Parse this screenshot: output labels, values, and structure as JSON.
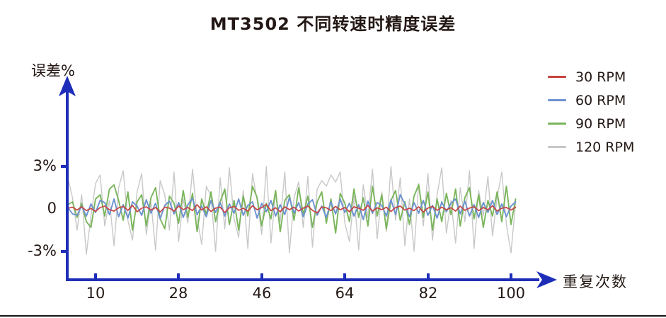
{
  "page": {
    "title": "MT3502 不同转速时精度误差"
  },
  "chart_data": {
    "type": "line",
    "title": "MT3502 不同转速时精度误差",
    "xlabel": "重复次数",
    "ylabel": "误差%",
    "x_ticks": [
      "10",
      "28",
      "46",
      "64",
      "82",
      "100"
    ],
    "x_tick_values": [
      10,
      28,
      46,
      64,
      82,
      100
    ],
    "y_ticks": [
      "3%",
      "0",
      "-3%"
    ],
    "y_tick_values": [
      3,
      0,
      -3
    ],
    "ylim": [
      -3.5,
      3.5
    ],
    "x_start": 4,
    "x_step": 1,
    "grid": false,
    "legend_position": "top-right",
    "axis_color": "#1e2eb8",
    "text_color": "#231815",
    "series": [
      {
        "name": "30 RPM",
        "color": "#c74440",
        "values": [
          0.05,
          0.12,
          -0.08,
          0.15,
          -0.12,
          0.04,
          -0.18,
          0.1,
          0.2,
          -0.06,
          -0.15,
          0.08,
          0.18,
          -0.1,
          0.25,
          -0.2,
          0.05,
          0.15,
          -0.08,
          0.1,
          -0.22,
          0.12,
          0.06,
          -0.15,
          0.2,
          -0.05,
          0.1,
          -0.12,
          0.3,
          -0.08,
          0.15,
          -0.18,
          0.06,
          0.12,
          -0.25,
          0.08,
          0.18,
          -0.1,
          0.05,
          -0.15,
          0.22,
          -0.06,
          0.1,
          0.32,
          -0.12,
          0.08,
          -0.2,
          0.15,
          -0.05,
          0.12,
          -0.15,
          0.06,
          0.2,
          -0.1,
          -0.28,
          0.14,
          0.08,
          -0.12,
          0.18,
          -0.06,
          0.1,
          -0.2,
          0.15,
          0.05,
          -0.1,
          0.25,
          -0.15,
          0.08,
          -0.05,
          0.12,
          -0.18,
          0.1,
          0.2,
          -0.08,
          0.05,
          -0.12,
          0.15,
          -0.22,
          0.06,
          0.18,
          -0.1,
          0.12,
          -0.05,
          0.08,
          -0.15,
          0.2,
          -0.1,
          0.06,
          0.15,
          -0.12,
          0.1,
          -0.06,
          0.22,
          -0.15,
          0.05,
          0.1,
          -0.08,
          0.12
        ]
      },
      {
        "name": "60 RPM",
        "color": "#6d92d0",
        "values": [
          0.1,
          -0.35,
          -0.45,
          0.2,
          -0.5,
          0.35,
          -0.25,
          0.6,
          0.45,
          -0.4,
          0.7,
          -0.55,
          0.3,
          -0.65,
          0.5,
          0.2,
          -0.45,
          0.65,
          -0.3,
          0.4,
          -0.7,
          0.25,
          0.55,
          -0.35,
          0.45,
          -0.6,
          0.3,
          0.75,
          -0.4,
          0.2,
          -0.55,
          0.6,
          -0.25,
          0.45,
          -0.5,
          0.35,
          -0.3,
          0.7,
          -0.45,
          0.25,
          0.5,
          -0.65,
          0.4,
          -0.2,
          0.6,
          -0.5,
          0.3,
          -0.4,
          0.8,
          -0.3,
          0.45,
          -0.55,
          0.35,
          0.65,
          -0.45,
          0.2,
          -0.6,
          0.5,
          -0.35,
          0.7,
          -0.25,
          0.4,
          -0.5,
          0.3,
          -0.75,
          0.55,
          -0.3,
          0.45,
          0.25,
          -0.5,
          0.65,
          -0.4,
          1.0,
          0.35,
          -0.55,
          0.45,
          -0.3,
          0.6,
          -0.45,
          0.25,
          -0.65,
          0.5,
          -0.2,
          0.4,
          0.7,
          -0.35,
          0.55,
          -0.5,
          0.3,
          -0.6,
          0.45,
          -0.25,
          0.6,
          -0.4,
          0.35,
          -0.55,
          0.2,
          0.5
        ]
      },
      {
        "name": "90 RPM",
        "color": "#7ab55c",
        "values": [
          0.3,
          0.5,
          -0.6,
          0.4,
          -0.9,
          -1.3,
          0.7,
          1.0,
          -0.5,
          1.4,
          1.7,
          0.6,
          -0.8,
          1.2,
          -1.5,
          0.5,
          1.0,
          -1.2,
          0.8,
          1.5,
          -0.7,
          -1.4,
          0.9,
          0.4,
          -1.0,
          1.3,
          -0.6,
          1.1,
          -1.6,
          0.7,
          -0.4,
          1.2,
          -0.9,
          0.5,
          1.4,
          -1.1,
          0.6,
          -1.5,
          0.9,
          -0.5,
          1.6,
          0.8,
          -1.2,
          0.4,
          -0.7,
          1.3,
          -1.6,
          0.6,
          1.0,
          -0.8,
          1.5,
          -0.4,
          0.9,
          -1.3,
          0.5,
          1.2,
          -1.0,
          0.7,
          -1.7,
          1.1,
          0.4,
          -0.9,
          1.4,
          -0.6,
          0.8,
          -1.2,
          1.6,
          -0.5,
          1.0,
          -1.4,
          0.6,
          1.3,
          -0.8,
          0.5,
          -1.1,
          0.9,
          1.7,
          -0.6,
          1.2,
          -1.5,
          0.7,
          -0.9,
          1.1,
          -0.4,
          1.4,
          -1.2,
          0.8,
          1.5,
          -0.7,
          1.0,
          -1.3,
          0.6,
          -0.5,
          1.2,
          -0.9,
          1.6,
          -1.1,
          0.7
        ]
      },
      {
        "name": "120 RPM",
        "color": "#c8c8c8",
        "values": [
          2.2,
          0.8,
          -1.5,
          1.0,
          -3.2,
          -0.5,
          1.8,
          2.4,
          -1.2,
          0.6,
          -2.6,
          1.5,
          2.7,
          -0.8,
          -2.2,
          1.2,
          2.5,
          -1.8,
          0.5,
          -2.9,
          2.0,
          1.0,
          -1.5,
          2.6,
          -2.3,
          0.7,
          -1.0,
          2.8,
          -0.6,
          -2.5,
          1.6,
          0.9,
          -3.0,
          2.2,
          -1.4,
          2.9,
          -0.7,
          -2.0,
          1.3,
          -2.8,
          2.5,
          0.6,
          -1.8,
          3.0,
          -2.4,
          1.1,
          -0.9,
          2.6,
          -3.1,
          0.8,
          1.9,
          -1.3,
          2.3,
          -2.7,
          1.4,
          2.0,
          1.6,
          2.4,
          1.9,
          2.6,
          -1.0,
          -2.3,
          0.9,
          -2.9,
          1.7,
          -0.6,
          2.8,
          -2.1,
          1.2,
          -1.6,
          3.0,
          -0.8,
          2.2,
          -2.6,
          0.7,
          -3.0,
          1.8,
          -1.2,
          2.5,
          -2.2,
          1.0,
          2.9,
          -1.7,
          0.6,
          -2.4,
          1.5,
          -0.9,
          2.7,
          -2.8,
          1.3,
          -0.5,
          2.3,
          -1.9,
          0.8,
          2.6,
          -1.1,
          -3.1,
          0.4
        ]
      }
    ]
  }
}
